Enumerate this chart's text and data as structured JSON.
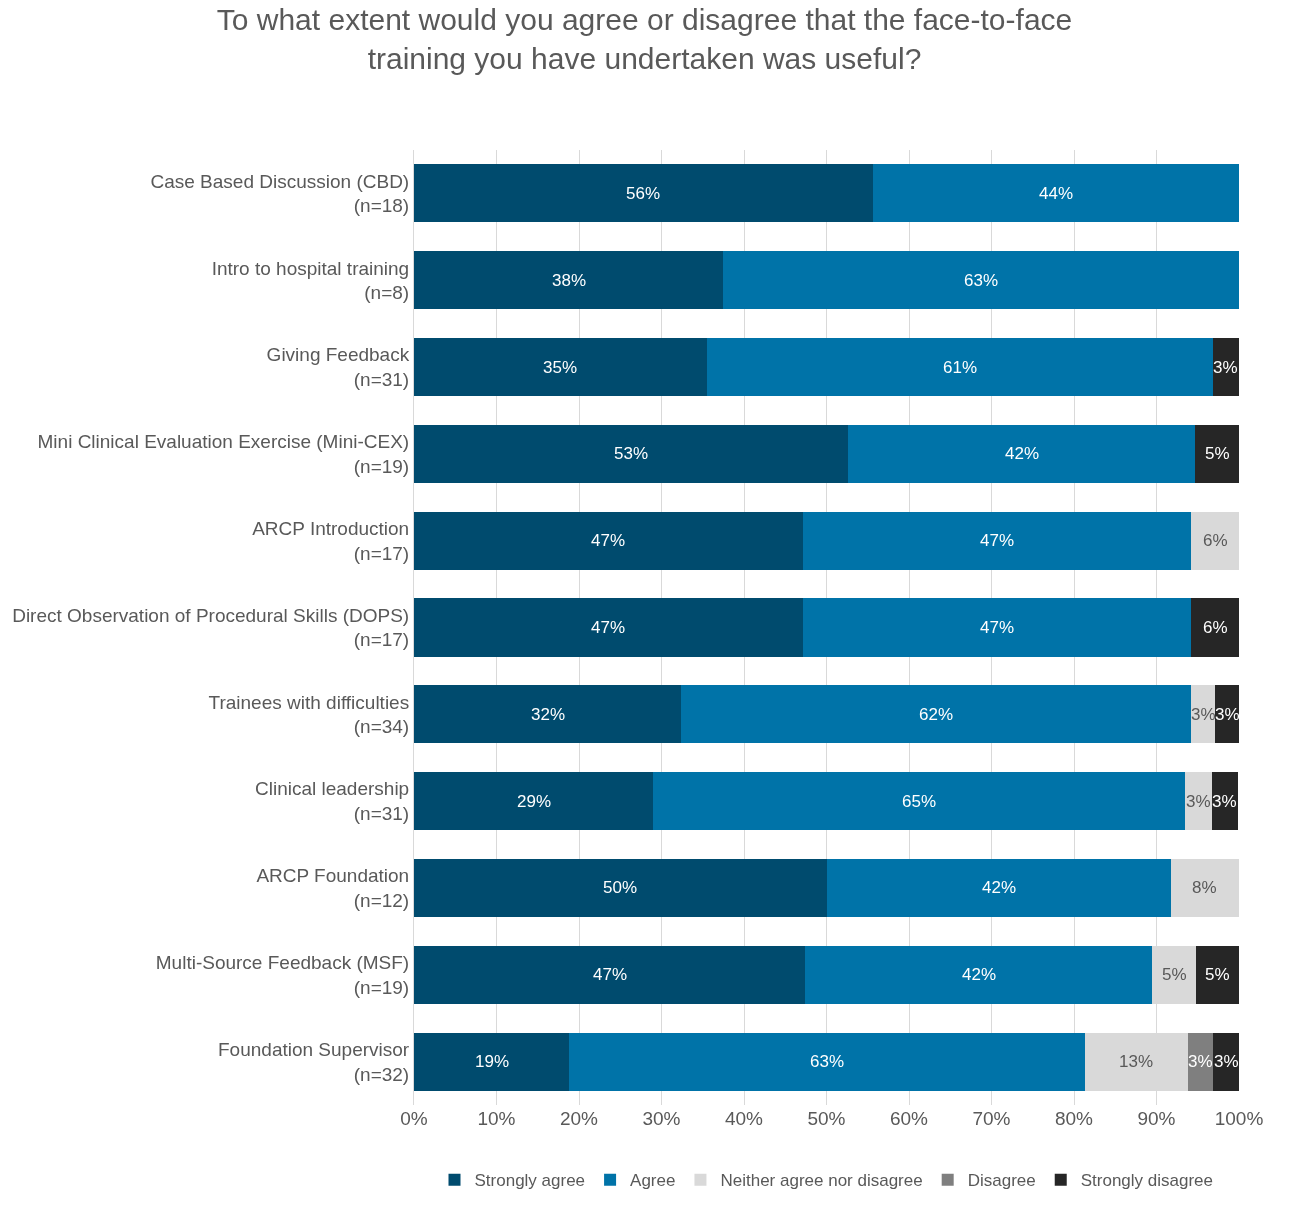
{
  "chart_data": {
    "type": "bar",
    "orientation": "horizontal",
    "stacked": true,
    "title": "To what extent would you agree or disagree that the face-to-face\ntraining you have undertaken was useful?",
    "categories": [
      "Case Based Discussion (CBD)\n(n=18)",
      "Intro to hospital training\n(n=8)",
      "Giving Feedback\n(n=31)",
      "Mini Clinical Evaluation Exercise (Mini-CEX)\n(n=19)",
      "ARCP Introduction\n(n=17)",
      "Direct Observation of Procedural Skills (DOPS)\n(n=17)",
      "Trainees with difficulties\n(n=34)",
      "Clinical leadership\n(n=31)",
      "ARCP Foundation\n(n=12)",
      "Multi-Source Feedback (MSF)\n(n=19)",
      "Foundation Supervisor\n(n=32)"
    ],
    "series": [
      {
        "name": "Strongly agree",
        "color": "#004b6e",
        "values": [
          55.6,
          37.5,
          35.5,
          52.6,
          47.1,
          47.1,
          32.4,
          29.0,
          50.0,
          47.4,
          18.8
        ],
        "value_labels": [
          "56%",
          "38%",
          "35%",
          "53%",
          "47%",
          "47%",
          "32%",
          "29%",
          "50%",
          "47%",
          "19%"
        ]
      },
      {
        "name": "Agree",
        "color": "#0073a8",
        "values": [
          44.4,
          62.5,
          61.3,
          42.1,
          47.1,
          47.1,
          61.8,
          64.5,
          41.7,
          42.1,
          62.5
        ],
        "value_labels": [
          "44%",
          "63%",
          "61%",
          "42%",
          "47%",
          "47%",
          "62%",
          "65%",
          "42%",
          "42%",
          "63%"
        ]
      },
      {
        "name": "Neither agree nor disagree",
        "color": "#d9d9d9",
        "values": [
          null,
          null,
          null,
          null,
          5.9,
          null,
          2.9,
          3.2,
          8.3,
          5.3,
          12.5
        ],
        "value_labels": [
          null,
          null,
          null,
          null,
          "6%",
          null,
          "3%",
          "3%",
          "8%",
          "5%",
          "13%"
        ]
      },
      {
        "name": "Disagree",
        "color": "#7f7f7f",
        "values": [
          null,
          null,
          null,
          null,
          null,
          null,
          null,
          null,
          null,
          null,
          3.1
        ],
        "value_labels": [
          null,
          null,
          null,
          null,
          null,
          null,
          null,
          null,
          null,
          null,
          "3%"
        ]
      },
      {
        "name": "Strongly disagree",
        "color": "#262626",
        "values": [
          null,
          null,
          3.2,
          5.3,
          null,
          5.9,
          2.9,
          3.2,
          null,
          5.3,
          3.1
        ],
        "value_labels": [
          null,
          null,
          "3%",
          "5%",
          null,
          "6%",
          "3%",
          "3%",
          null,
          "5%",
          "3%"
        ]
      }
    ],
    "xlim": [
      0,
      100
    ],
    "xticks": [
      {
        "value": 0,
        "label": "0%"
      },
      {
        "value": 10,
        "label": "10%"
      },
      {
        "value": 20,
        "label": "20%"
      },
      {
        "value": 30,
        "label": "30%"
      },
      {
        "value": 40,
        "label": "40%"
      },
      {
        "value": 50,
        "label": "50%"
      },
      {
        "value": 60,
        "label": "60%"
      },
      {
        "value": 70,
        "label": "70%"
      },
      {
        "value": 80,
        "label": "80%"
      },
      {
        "value": 90,
        "label": "90%"
      },
      {
        "value": 100,
        "label": "100%"
      }
    ],
    "grid": "x",
    "legend": "bottom"
  }
}
